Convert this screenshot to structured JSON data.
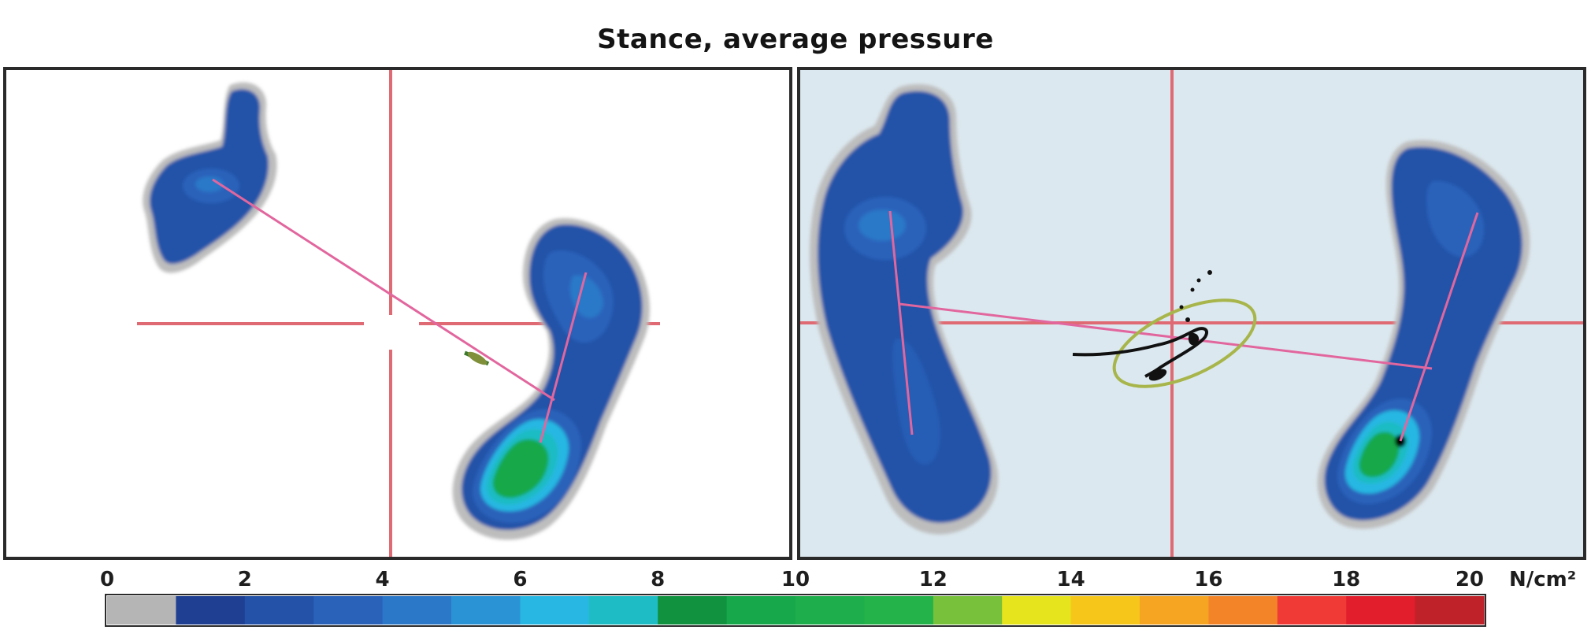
{
  "chart_data": {
    "type": "heatmap",
    "title": "Stance, average pressure",
    "panels": [
      {
        "name": "",
        "background": "#ffffff"
      },
      {
        "name": "",
        "background": "#dbe8ef"
      }
    ],
    "colorbar": {
      "min": 0,
      "max": 20,
      "step": 1,
      "unit": "N/cm²",
      "ticks": [
        "0",
        "2",
        "4",
        "6",
        "8",
        "10",
        "12",
        "14",
        "16",
        "18",
        "20"
      ],
      "colors": [
        "#b5b5b5",
        "#1f3f92",
        "#2452a8",
        "#2a62ba",
        "#2c78c8",
        "#2a93d6",
        "#28b7e2",
        "#1ebcc4",
        "#10923e",
        "#16a84a",
        "#1fae4c",
        "#24b24a",
        "#78c13a",
        "#e6e41c",
        "#f6c71a",
        "#f5a522",
        "#f38528",
        "#ef3a36",
        "#e21e2c",
        "#c0222a"
      ]
    }
  }
}
